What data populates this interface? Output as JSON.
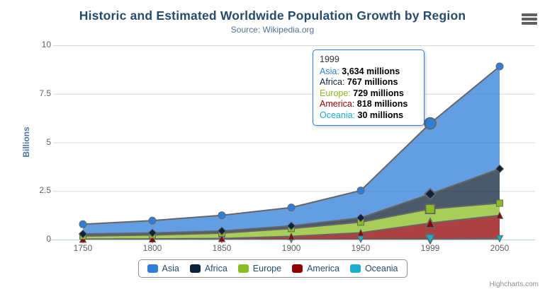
{
  "chart_data": {
    "type": "area",
    "stacking": "normal",
    "title": "Historic and Estimated Worldwide Population Growth by Region",
    "subtitle": "Source: Wikipedia.org",
    "ylabel": "Billions",
    "ylim": [
      0,
      10
    ],
    "yticks": [
      0,
      2.5,
      5,
      7.5,
      10
    ],
    "grid": true,
    "legend_position": "bottom",
    "values_unit": "millions",
    "categories": [
      "1750",
      "1800",
      "1850",
      "1900",
      "1950",
      "1999",
      "2050"
    ],
    "series": [
      {
        "name": "Asia",
        "color": "#2f7ed8",
        "marker": "circle",
        "values": [
          502,
          635,
          809,
          947,
          1402,
          3634,
          5268
        ]
      },
      {
        "name": "Africa",
        "color": "#0d233a",
        "marker": "diamond",
        "values": [
          106,
          107,
          111,
          133,
          221,
          767,
          1766
        ]
      },
      {
        "name": "Europe",
        "color": "#8bbc21",
        "marker": "square",
        "values": [
          163,
          203,
          276,
          408,
          547,
          729,
          628
        ]
      },
      {
        "name": "America",
        "color": "#910000",
        "marker": "triangle",
        "values": [
          18,
          31,
          54,
          156,
          339,
          818,
          1201
        ]
      },
      {
        "name": "Oceania",
        "color": "#1aadce",
        "marker": "triangle-down",
        "values": [
          2,
          2,
          2,
          6,
          13,
          30,
          46
        ]
      }
    ],
    "line_color": "#666666",
    "hover": {
      "category": "1999",
      "category_index": 5
    }
  },
  "tooltip": {
    "header": "1999",
    "rows": [
      {
        "name": "Asia",
        "color": "#2f7ed8",
        "value": "3,634 millions"
      },
      {
        "name": "Africa",
        "color": "#0d233a",
        "value": "767 millions"
      },
      {
        "name": "Europe",
        "color": "#8bbc21",
        "value": "729 millions"
      },
      {
        "name": "America",
        "color": "#910000",
        "value": "818 millions"
      },
      {
        "name": "Oceania",
        "color": "#1aadce",
        "value": "30 millions"
      }
    ]
  },
  "legend": {
    "items": [
      "Asia",
      "Africa",
      "Europe",
      "America",
      "Oceania"
    ]
  },
  "credits": "Highcharts.com",
  "menu": {
    "icon": "hamburger-menu"
  },
  "colors": {
    "title": "#274b6d",
    "subtitle": "#4d759e",
    "axis_label": "#606060",
    "grid": "#d8d8d8",
    "axis_line": "#c0d0e0",
    "legend_border": "#909090",
    "tooltip_border": "#2f7ed8",
    "series_line": "#666666"
  }
}
